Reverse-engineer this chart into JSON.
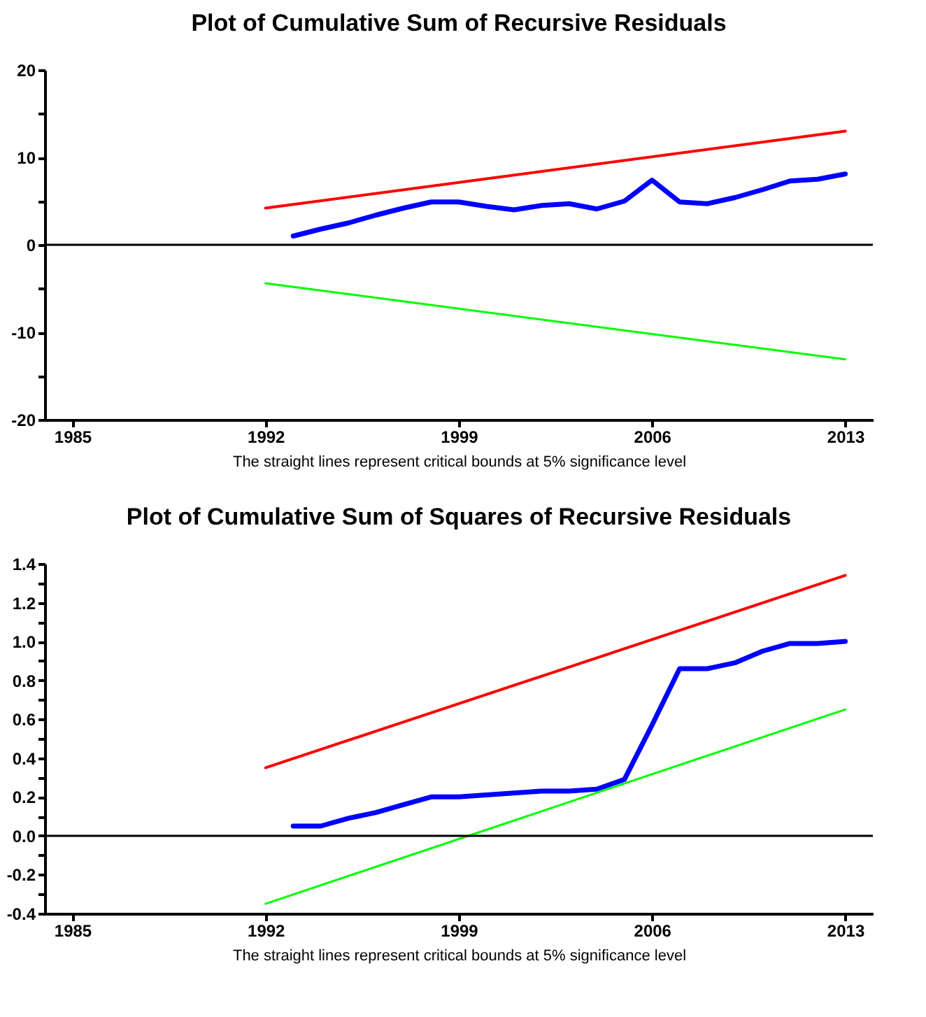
{
  "chart_data": [
    {
      "type": "line",
      "title": "Plot of Cumulative Sum of Recursive Residuals",
      "xlabel": "The straight lines represent critical bounds at 5% significance level",
      "xlim": [
        1984,
        2014
      ],
      "xticks": [
        1985,
        1992,
        1999,
        2006,
        2013
      ],
      "ylim": [
        -20,
        20
      ],
      "yticks": [
        -20,
        {
          "value": -15,
          "label": null
        },
        -10,
        {
          "value": -5,
          "label": null
        },
        0,
        {
          "value": 5,
          "label": null
        },
        10,
        {
          "value": 15,
          "label": null
        },
        20
      ],
      "grid": false,
      "marker": "none",
      "line_style": "solid",
      "ref_lines": [
        {
          "axis": "y",
          "value": 0,
          "color": "#000000"
        }
      ],
      "series": [
        {
          "color": "#0000ff",
          "x": [
            1993,
            1994,
            1995,
            1996,
            1997,
            1998,
            1999,
            2000,
            2001,
            2002,
            2003,
            2004,
            2005,
            2006,
            2007,
            2008,
            2009,
            2010,
            2011,
            2012,
            2013
          ],
          "values": [
            1.0,
            1.8,
            2.5,
            3.4,
            4.2,
            4.9,
            4.9,
            4.4,
            4.0,
            4.5,
            4.7,
            4.1,
            5.0,
            7.4,
            4.9,
            4.7,
            5.4,
            6.3,
            7.3,
            7.5,
            8.1
          ]
        },
        {
          "color": "#ff0000",
          "x": [
            1992,
            2013
          ],
          "values": [
            4.2,
            13.0
          ]
        },
        {
          "color": "#00ff00",
          "x": [
            1992,
            2013
          ],
          "values": [
            -4.4,
            -13.1
          ]
        }
      ]
    },
    {
      "type": "line",
      "title": "Plot of Cumulative Sum of Squares of Recursive Residuals",
      "xlabel": "The straight lines represent critical bounds at 5% significance level",
      "xlim": [
        1984,
        2014
      ],
      "xticks": [
        1985,
        1992,
        1999,
        2006,
        2013
      ],
      "ylim": [
        -0.4,
        1.4
      ],
      "yticks": [
        -0.4,
        {
          "value": -0.3,
          "label": null
        },
        -0.2,
        {
          "value": -0.1,
          "label": null
        },
        {
          "value": 0,
          "label": "0.0"
        },
        {
          "value": 0.1,
          "label": null
        },
        0.2,
        {
          "value": 0.3,
          "label": null
        },
        0.4,
        {
          "value": 0.5,
          "label": null
        },
        0.6,
        {
          "value": 0.7,
          "label": null
        },
        0.8,
        {
          "value": 0.9,
          "label": null
        },
        {
          "value": 1,
          "label": "1.0"
        },
        {
          "value": 1.1,
          "label": null
        },
        1.2,
        {
          "value": 1.3,
          "label": null
        },
        1.4
      ],
      "grid": false,
      "marker": "none",
      "line_style": "solid",
      "ref_lines": [
        {
          "axis": "y",
          "value": 0,
          "color": "#000000"
        }
      ],
      "series": [
        {
          "color": "#0000ff",
          "x": [
            1993,
            1994,
            1995,
            1996,
            1997,
            1998,
            1999,
            2000,
            2001,
            2002,
            2003,
            2004,
            2005,
            2006,
            2007,
            2008,
            2009,
            2010,
            2011,
            2012,
            2013
          ],
          "values": [
            0.05,
            0.05,
            0.09,
            0.12,
            0.16,
            0.2,
            0.2,
            0.21,
            0.22,
            0.23,
            0.23,
            0.24,
            0.29,
            0.57,
            0.86,
            0.86,
            0.89,
            0.95,
            0.99,
            0.99,
            1.0
          ]
        },
        {
          "color": "#ff0000",
          "x": [
            1992,
            2013
          ],
          "values": [
            0.35,
            1.34
          ]
        },
        {
          "color": "#00ff00",
          "x": [
            1992,
            2013
          ],
          "values": [
            -0.35,
            0.65
          ]
        }
      ]
    }
  ]
}
